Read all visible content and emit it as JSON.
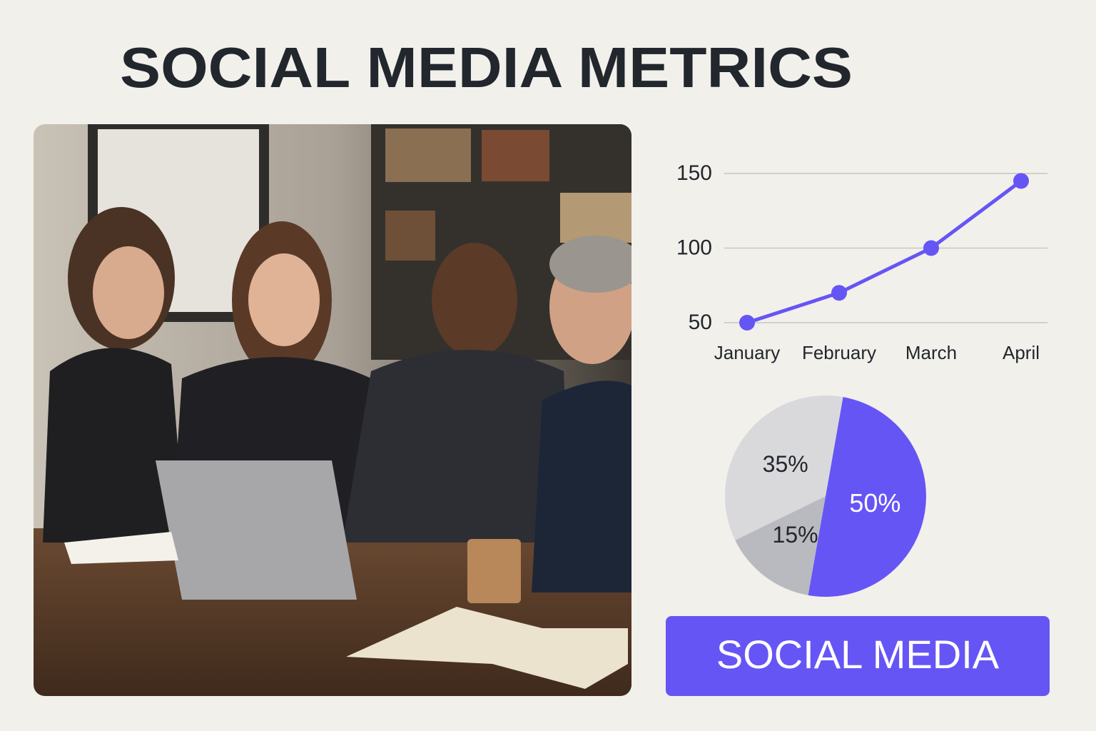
{
  "title": "SOCIAL MEDIA METRICS",
  "button": "SOCIAL MEDIA",
  "chart_data": [
    {
      "type": "line",
      "categories": [
        "January",
        "February",
        "March",
        "April"
      ],
      "values": [
        50,
        70,
        100,
        145
      ],
      "color": "#6655f5",
      "ylim": [
        50,
        150
      ],
      "yticks": [
        50,
        100,
        150
      ],
      "grid": true
    },
    {
      "type": "pie",
      "values": [
        50,
        15,
        35
      ],
      "value_labels": [
        "50%",
        "15%",
        "35%"
      ],
      "colors": [
        "#6655f5",
        "#b9b9c0",
        "#d9d9dc"
      ]
    }
  ]
}
